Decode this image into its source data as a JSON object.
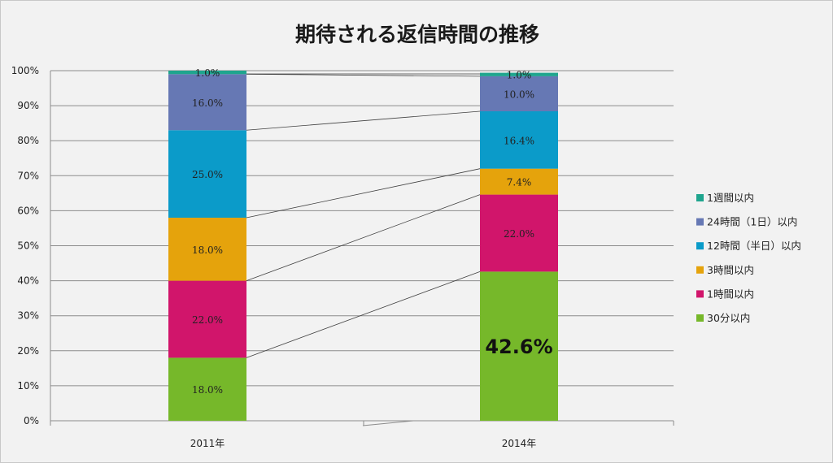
{
  "title": "期待される返信時間の推移",
  "chart_data": {
    "type": "bar",
    "stacked": true,
    "categories": [
      "2011年",
      "2014年"
    ],
    "ylim": [
      0,
      100
    ],
    "yticks": [
      "0%",
      "10%",
      "20%",
      "30%",
      "40%",
      "50%",
      "60%",
      "70%",
      "80%",
      "90%",
      "100%"
    ],
    "grid": true,
    "legend_position": "right",
    "series": [
      {
        "name": "30分以内",
        "color": "#76b82a",
        "values": [
          18.0,
          42.6
        ],
        "labels": [
          "18.0%",
          "42.6%"
        ]
      },
      {
        "name": "1時間以内",
        "color": "#d1156b",
        "values": [
          22.0,
          22.0
        ],
        "labels": [
          "22.0%",
          "22.0%"
        ]
      },
      {
        "name": "3時間以内",
        "color": "#e5a30c",
        "values": [
          18.0,
          7.4
        ],
        "labels": [
          "18.0%",
          "7.4%"
        ]
      },
      {
        "name": "12時間（半日）以内",
        "color": "#0b9bc9",
        "values": [
          25.0,
          16.4
        ],
        "labels": [
          "25.0%",
          "16.4%"
        ]
      },
      {
        "name": "24時間（1日）以内",
        "color": "#6678b4",
        "values": [
          16.0,
          10.0
        ],
        "labels": [
          "16.0%",
          "10.0%"
        ]
      },
      {
        "name": "1週間以内",
        "color": "#1fa58e",
        "values": [
          1.0,
          1.0
        ],
        "labels": [
          "1.0%",
          "1.0%"
        ]
      }
    ],
    "emphasized_label": "42.6%"
  }
}
